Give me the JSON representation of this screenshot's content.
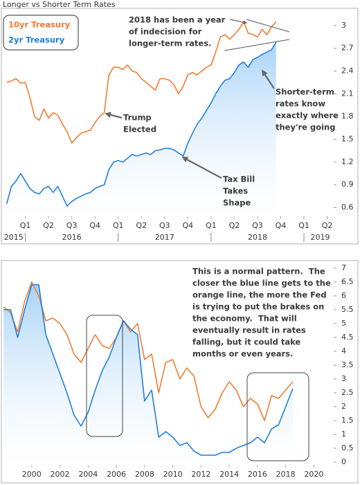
{
  "chart_data": [
    {
      "type": "line",
      "title": "Longer vs Shorter Term Rates",
      "x": [
        2015.8,
        2015.85,
        2015.9,
        2015.95,
        2016.0,
        2016.05,
        2016.1,
        2016.15,
        2016.2,
        2016.25,
        2016.3,
        2016.35,
        2016.4,
        2016.45,
        2016.5,
        2016.55,
        2016.6,
        2016.65,
        2016.7,
        2016.75,
        2016.8,
        2016.85,
        2016.9,
        2016.95,
        2017.0,
        2017.05,
        2017.1,
        2017.15,
        2017.2,
        2017.25,
        2017.3,
        2017.35,
        2017.4,
        2017.45,
        2017.5,
        2017.55,
        2017.6,
        2017.65,
        2017.7,
        2017.75,
        2017.8,
        2017.85,
        2017.9,
        2017.95,
        2018.0,
        2018.05,
        2018.1,
        2018.15,
        2018.2,
        2018.25,
        2018.3,
        2018.35,
        2018.4,
        2018.45,
        2018.5,
        2018.55,
        2018.6,
        2018.65,
        2018.7
      ],
      "series": [
        {
          "name": "10yr Treasury",
          "color": "#f47b31",
          "values": [
            2.25,
            2.27,
            2.3,
            2.24,
            2.25,
            2.05,
            1.8,
            1.75,
            1.9,
            1.78,
            1.85,
            1.82,
            1.7,
            1.6,
            1.45,
            1.52,
            1.58,
            1.6,
            1.62,
            1.72,
            1.8,
            1.85,
            2.35,
            2.45,
            2.45,
            2.42,
            2.48,
            2.4,
            2.38,
            2.3,
            2.25,
            2.2,
            2.15,
            2.3,
            2.3,
            2.28,
            2.22,
            2.1,
            2.2,
            2.35,
            2.38,
            2.35,
            2.4,
            2.45,
            2.48,
            2.65,
            2.85,
            2.88,
            2.82,
            2.88,
            2.95,
            3.05,
            2.9,
            2.88,
            2.85,
            2.95,
            2.88,
            2.98,
            3.05
          ]
        },
        {
          "name": "2yr Treasury",
          "color": "#1f7fe0",
          "area": true,
          "values": [
            0.65,
            0.88,
            0.95,
            1.05,
            0.95,
            0.85,
            0.8,
            0.78,
            0.85,
            0.88,
            0.8,
            0.88,
            0.75,
            0.62,
            0.68,
            0.72,
            0.75,
            0.78,
            0.8,
            0.85,
            0.88,
            0.9,
            1.1,
            1.2,
            1.22,
            1.2,
            1.25,
            1.3,
            1.28,
            1.3,
            1.32,
            1.3,
            1.35,
            1.36,
            1.38,
            1.38,
            1.36,
            1.32,
            1.28,
            1.45,
            1.58,
            1.7,
            1.78,
            1.88,
            1.98,
            2.1,
            2.2,
            2.28,
            2.3,
            2.38,
            2.48,
            2.52,
            2.45,
            2.55,
            2.58,
            2.62,
            2.65,
            2.68,
            2.78
          ]
        }
      ],
      "xlim": [
        2015.75,
        2019.35
      ],
      "xticks": [
        {
          "value": 2016,
          "label": "Q1"
        },
        {
          "value": 2016.25,
          "label": "Q2"
        },
        {
          "value": 2016.5,
          "label": "Q3"
        },
        {
          "value": 2016.75,
          "label": "Q4"
        },
        {
          "value": 2017,
          "label": "Q1"
        },
        {
          "value": 2017.25,
          "label": "Q2"
        },
        {
          "value": 2017.5,
          "label": "Q3"
        },
        {
          "value": 2017.75,
          "label": "Q4"
        },
        {
          "value": 2018,
          "label": "Q1"
        },
        {
          "value": 2018.25,
          "label": "Q2"
        },
        {
          "value": 2018.5,
          "label": "Q3"
        },
        {
          "value": 2018.75,
          "label": "Q4"
        },
        {
          "value": 2019,
          "label": "Q1"
        },
        {
          "value": 2019.25,
          "label": "Q2"
        }
      ],
      "years": [
        2015,
        2016,
        2017,
        2018,
        2019
      ],
      "ylim": [
        0.45,
        3.2
      ],
      "yticks": [
        0.6,
        0.9,
        1.2,
        1.5,
        1.8,
        2.1,
        2.4,
        2.7,
        3
      ],
      "annotations": [
        {
          "lines": [
            "2018 has been a year",
            "of indecision for",
            "longer-term rates."
          ]
        },
        {
          "lines": [
            "Trump",
            "Elected"
          ]
        },
        {
          "lines": [
            "Shorter-term",
            "rates know",
            "exactly where",
            "they're going"
          ]
        },
        {
          "lines": [
            "Tax Bill",
            "Takes",
            "Shape"
          ]
        }
      ]
    },
    {
      "type": "line",
      "x": [
        1998.0,
        1998.5,
        1999.0,
        1999.5,
        2000.0,
        2000.5,
        2001.0,
        2001.5,
        2002.0,
        2002.5,
        2003.0,
        2003.5,
        2004.0,
        2004.5,
        2005.0,
        2005.5,
        2006.0,
        2006.5,
        2007.0,
        2007.5,
        2008.0,
        2008.5,
        2009.0,
        2009.5,
        2010.0,
        2010.5,
        2011.0,
        2011.5,
        2012.0,
        2012.5,
        2013.0,
        2013.5,
        2014.0,
        2014.5,
        2015.0,
        2015.5,
        2016.0,
        2016.5,
        2017.0,
        2017.5,
        2018.0,
        2018.5
      ],
      "series": [
        {
          "color": "#f47b31",
          "values": [
            5.6,
            5.4,
            4.7,
            5.8,
            6.5,
            6.0,
            5.1,
            5.2,
            5.0,
            4.6,
            3.9,
            3.6,
            4.1,
            4.6,
            4.2,
            4.1,
            4.5,
            5.1,
            4.7,
            5.0,
            3.7,
            3.9,
            2.5,
            3.6,
            3.7,
            3.0,
            3.4,
            3.1,
            2.0,
            1.6,
            1.9,
            2.5,
            2.9,
            2.6,
            2.0,
            2.3,
            2.1,
            1.5,
            2.4,
            2.3,
            2.6,
            2.9
          ]
        },
        {
          "color": "#1f7fe0",
          "area": true,
          "values": [
            5.5,
            5.5,
            4.5,
            5.5,
            6.4,
            6.4,
            4.6,
            3.9,
            3.2,
            2.5,
            1.7,
            1.3,
            1.8,
            2.6,
            3.3,
            3.8,
            4.5,
            5.1,
            4.8,
            4.6,
            2.2,
            2.6,
            0.9,
            1.1,
            0.9,
            0.6,
            0.7,
            0.4,
            0.25,
            0.25,
            0.25,
            0.35,
            0.35,
            0.5,
            0.6,
            0.7,
            0.9,
            0.7,
            1.2,
            1.35,
            2.0,
            2.65
          ]
        }
      ],
      "xlim": [
        1997.9,
        2021.6
      ],
      "xticks": [
        2000,
        2002,
        2004,
        2006,
        2008,
        2010,
        2012,
        2014,
        2016,
        2018,
        2020
      ],
      "ylim": [
        -0.2,
        7.2
      ],
      "yticks": [
        0,
        0.5,
        1,
        1.5,
        2,
        2.5,
        3,
        3.5,
        4,
        4.5,
        5,
        5.5,
        6,
        6.5,
        7
      ],
      "annotations": [
        {
          "lines": [
            "This is a normal pattern.  The",
            "closer the blue line gets to the",
            "orange line, the more the Fed",
            "is trying to put the brakes on",
            "the economy.  That will",
            "eventually result in rates",
            "falling, but it could take",
            "months or even years."
          ]
        }
      ]
    }
  ]
}
